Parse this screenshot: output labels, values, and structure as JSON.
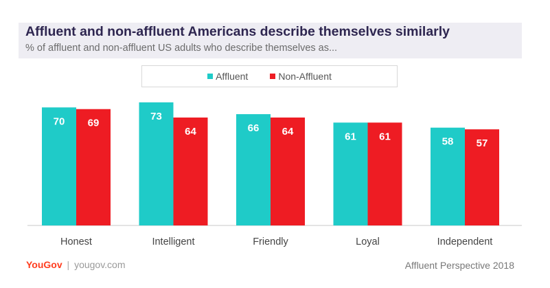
{
  "header": {
    "title": "Affluent and non-affluent Americans describe themselves similarly",
    "subtitle": "% of affluent and non-affluent US adults who describe themselves as..."
  },
  "legend": [
    {
      "label": "Affluent",
      "color": "#1fcbc8"
    },
    {
      "label": "Non-Affluent",
      "color": "#ee1c23"
    }
  ],
  "chart_data": {
    "type": "bar",
    "title": "Affluent and non-affluent Americans describe themselves similarly",
    "subtitle": "% of affluent and non-affluent US adults who describe themselves as...",
    "categories": [
      "Honest",
      "Intelligent",
      "Friendly",
      "Loyal",
      "Independent"
    ],
    "series": [
      {
        "name": "Affluent",
        "values": [
          70,
          73,
          66,
          61,
          58
        ],
        "color": "#1fcbc8"
      },
      {
        "name": "Non-Affluent",
        "values": [
          69,
          64,
          64,
          61,
          57
        ],
        "color": "#ee1c23"
      }
    ],
    "xlabel": "",
    "ylabel": "",
    "ylim": [
      0,
      75
    ],
    "grid": false,
    "legend_position": "top-center"
  },
  "footer": {
    "brand": "YouGov",
    "separator": "|",
    "url": "yougov.com",
    "source": "Affluent Perspective 2018"
  }
}
